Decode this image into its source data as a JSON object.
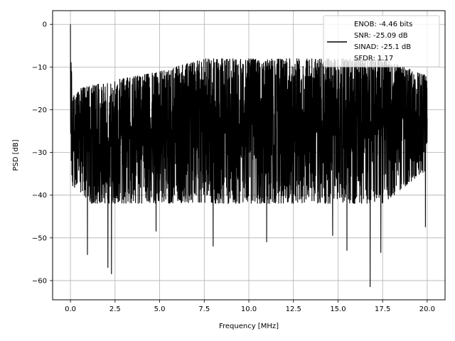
{
  "chart_data": {
    "type": "line",
    "title": "",
    "xlabel": "Frequency [MHz]",
    "ylabel": "PSD [dB]",
    "xlim": [
      -1.0,
      21.0
    ],
    "ylim": [
      -64.5,
      3.2
    ],
    "xticks": [
      0.0,
      2.5,
      5.0,
      7.5,
      10.0,
      12.5,
      15.0,
      17.5,
      20.0
    ],
    "xtick_labels": [
      "0.0",
      "2.5",
      "5.0",
      "7.5",
      "10.0",
      "12.5",
      "15.0",
      "17.5",
      "20.0"
    ],
    "yticks": [
      0,
      -10,
      -20,
      -30,
      -40,
      -50,
      -60
    ],
    "ytick_labels": [
      "0",
      "−10",
      "−20",
      "−30",
      "−40",
      "−50",
      "−60"
    ],
    "grid": true,
    "legend_position": "top-right",
    "legend_lines": [
      "ENOB: -4.46 bits",
      "SNR: -25.09 dB",
      "SINAD: -25.1 dB",
      "SFDR: 1.17"
    ],
    "series": [
      {
        "color": "#000000",
        "x_range": [
          0.0,
          20.0
        ],
        "points_approx": 3000,
        "peak": {
          "x": 0.0,
          "y": 0.0
        },
        "envelope_x": [
          0.0,
          0.1,
          0.5,
          1.0,
          2.5,
          5.0,
          7.5,
          10.0,
          12.5,
          15.0,
          17.5,
          20.0
        ],
        "upper_envelope": [
          0.0,
          -17.0,
          -15.0,
          -14.5,
          -13.0,
          -11.0,
          -8.0,
          -8.0,
          -8.0,
          -8.0,
          -8.0,
          -12.0
        ],
        "lower_typical": [
          -28.0,
          -38.0,
          -40.0,
          -42.0,
          -42.0,
          -42.0,
          -42.0,
          -42.0,
          -42.0,
          -42.0,
          -42.0,
          -34.0
        ],
        "deep_minima": [
          {
            "x": 0.95,
            "y": -54.0
          },
          {
            "x": 2.1,
            "y": -57.0
          },
          {
            "x": 2.3,
            "y": -58.5
          },
          {
            "x": 4.8,
            "y": -48.5
          },
          {
            "x": 8.0,
            "y": -52.0
          },
          {
            "x": 11.0,
            "y": -51.0
          },
          {
            "x": 14.7,
            "y": -49.5
          },
          {
            "x": 15.5,
            "y": -53.0
          },
          {
            "x": 16.8,
            "y": -61.5
          },
          {
            "x": 17.4,
            "y": -53.5
          },
          {
            "x": 19.9,
            "y": -47.5
          }
        ],
        "trend_mean": [
          {
            "x": 0.3,
            "y": -25.0
          },
          {
            "x": 5.0,
            "y": -23.0
          },
          {
            "x": 10.0,
            "y": -20.0
          },
          {
            "x": 17.0,
            "y": -18.0
          },
          {
            "x": 20.0,
            "y": -22.0
          }
        ]
      }
    ]
  }
}
